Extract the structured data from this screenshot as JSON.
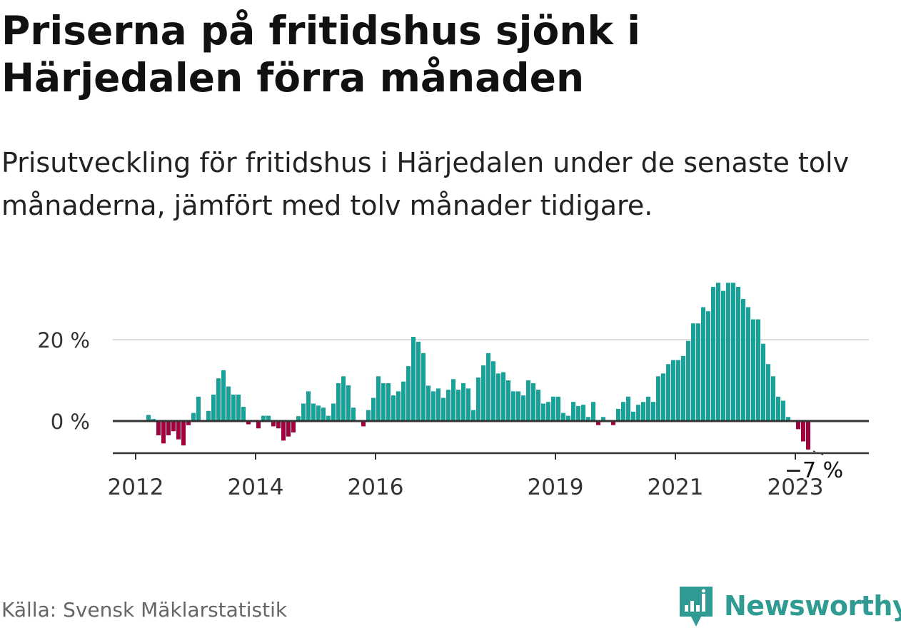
{
  "title": "Priserna på fritidshus sjönk i Härjedalen förra månaden",
  "subtitle": "Prisutveckling för fritidshus i Härjedalen under de senaste tolv månaderna, jämfört med tolv månader tidigare.",
  "source": "Källa: Svensk Mäklarstatistik",
  "brand": {
    "name": "Newsworthy",
    "color": "#2f9b92",
    "icon": "chart-bubble-icon"
  },
  "colors": {
    "positive": "#18a199",
    "negative": "#a0003c",
    "axis": "#333333",
    "grid": "#dddddd"
  },
  "chart_data": {
    "type": "bar",
    "title": "Priserna på fritidshus sjönk i Härjedalen förra månaden",
    "xlabel": "",
    "ylabel": "",
    "unit": "%",
    "x_start": "2012-03",
    "x_frequency": "monthly",
    "x_ticks": [
      "2012",
      "2014",
      "2016",
      "2019",
      "2021",
      "2023"
    ],
    "y_ticks": [
      {
        "value": 0,
        "label": "0 %"
      },
      {
        "value": 20,
        "label": "20 %"
      }
    ],
    "ylim": [
      -8,
      34.5
    ],
    "grid": "horizontal",
    "legend": "none",
    "annotation": {
      "label": "−7 %",
      "value": -7,
      "date": "2023-04"
    },
    "values": [
      1.5,
      0.5,
      -3.5,
      -5.5,
      -3.5,
      -2.5,
      -4.5,
      -6.0,
      -1.0,
      2.0,
      6.0,
      -0.2,
      2.5,
      6.5,
      10.5,
      12.5,
      8.5,
      6.5,
      6.5,
      3.5,
      -0.8,
      0.0,
      -1.8,
      1.3,
      1.3,
      -1.3,
      -1.8,
      -4.8,
      -3.8,
      -2.8,
      1.2,
      4.3,
      7.3,
      4.3,
      3.8,
      3.3,
      1.3,
      4.3,
      9.3,
      11.0,
      8.8,
      3.3,
      0.2,
      -1.3,
      2.7,
      5.7,
      11.0,
      9.3,
      9.3,
      6.3,
      7.3,
      9.7,
      13.5,
      20.7,
      19.5,
      16.7,
      8.7,
      7.3,
      8.0,
      5.7,
      7.7,
      10.3,
      7.7,
      9.3,
      8.0,
      2.7,
      10.7,
      13.7,
      16.7,
      14.7,
      11.7,
      12.0,
      10.0,
      7.3,
      7.3,
      6.3,
      10.0,
      9.3,
      7.7,
      4.3,
      4.7,
      6.0,
      6.0,
      2.0,
      1.3,
      4.7,
      3.7,
      4.0,
      1.0,
      4.7,
      -1.0,
      1.0,
      0.0,
      -1.0,
      3.0,
      4.7,
      6.0,
      2.3,
      4.0,
      4.7,
      6.0,
      4.7,
      11.0,
      11.7,
      14.0,
      15.0,
      15.0,
      16.0,
      19.7,
      24.0,
      24.0,
      28.0,
      27.0,
      33.0,
      34.0,
      32.0,
      34.0,
      34.0,
      33.0,
      30.0,
      28.0,
      25.0,
      25.0,
      19.0,
      14.0,
      11.0,
      6.0,
      5.0,
      1.0,
      0.0,
      -2.0,
      -5.0,
      -7.0
    ]
  }
}
